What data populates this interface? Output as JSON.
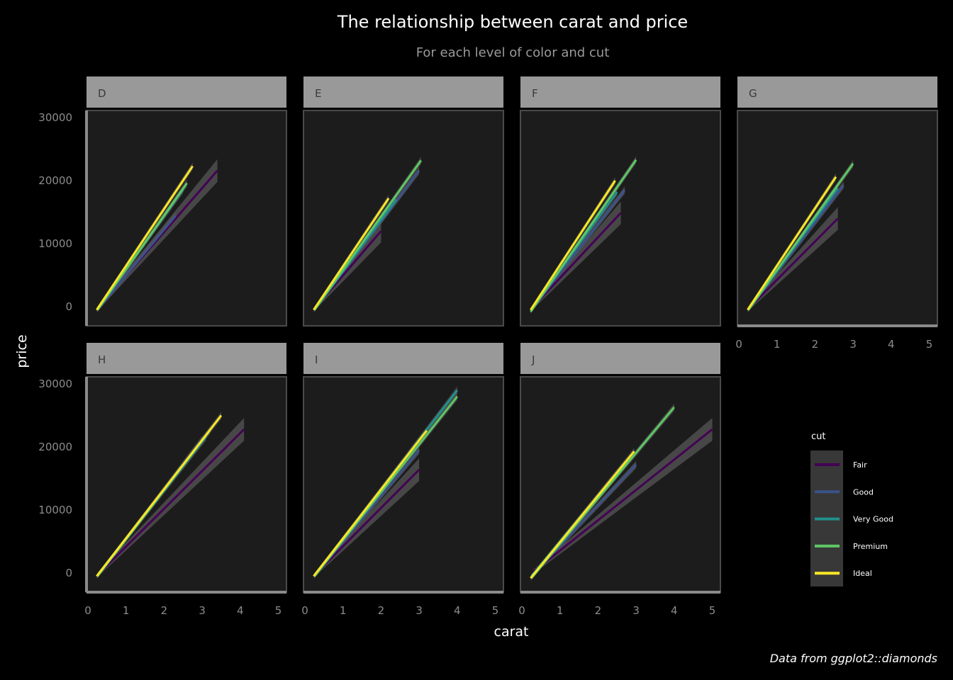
{
  "chart_data": {
    "type": "line",
    "title": "The relationship between carat and price",
    "subtitle": "For each level of color and cut",
    "xlabel": "carat",
    "ylabel": "price",
    "caption": "Data from ggplot2::diamonds",
    "xlim": [
      0,
      5
    ],
    "ylim": [
      -2500,
      33000
    ],
    "x_ticks": [
      "0",
      "1",
      "2",
      "3",
      "4",
      "5"
    ],
    "y_ticks": [
      "0",
      "10000",
      "20000",
      "30000"
    ],
    "legend": {
      "title": "cut",
      "position": "right",
      "entries": [
        "Fair",
        "Good",
        "Very Good",
        "Premium",
        "Ideal"
      ]
    },
    "colors": {
      "Fair": "#440154",
      "Good": "#3b528b",
      "Very Good": "#21908c",
      "Premium": "#5dc863",
      "Ideal": "#fde725",
      "background": "#000000",
      "panel": "#1c1c1c",
      "strip": "#999999",
      "ribbon": "#555555"
    },
    "facets": [
      {
        "label": "D",
        "series": [
          {
            "name": "Fair",
            "x": [
              0.25,
              3.4
            ],
            "y": [
              -300,
              21600
            ]
          },
          {
            "name": "Good",
            "x": [
              0.25,
              2.3
            ],
            "y": [
              -500,
              14400
            ]
          },
          {
            "name": "Very Good",
            "x": [
              0.25,
              2.5
            ],
            "y": [
              -500,
              18600
            ]
          },
          {
            "name": "Premium",
            "x": [
              0.25,
              2.6
            ],
            "y": [
              -500,
              19600
            ]
          },
          {
            "name": "Ideal",
            "x": [
              0.23,
              2.75
            ],
            "y": [
              -500,
              22300
            ]
          }
        ]
      },
      {
        "label": "E",
        "series": [
          {
            "name": "Fair",
            "x": [
              0.25,
              2.0
            ],
            "y": [
              -300,
              12000
            ]
          },
          {
            "name": "Good",
            "x": [
              0.25,
              3.0
            ],
            "y": [
              -500,
              21600
            ]
          },
          {
            "name": "Very Good",
            "x": [
              0.25,
              2.4
            ],
            "y": [
              -500,
              17000
            ]
          },
          {
            "name": "Premium",
            "x": [
              0.25,
              3.05
            ],
            "y": [
              -500,
              23200
            ]
          },
          {
            "name": "Ideal",
            "x": [
              0.23,
              2.2
            ],
            "y": [
              -500,
              17200
            ]
          }
        ]
      },
      {
        "label": "F",
        "series": [
          {
            "name": "Fair",
            "x": [
              0.25,
              2.6
            ],
            "y": [
              -300,
              14900
            ]
          },
          {
            "name": "Good",
            "x": [
              0.25,
              2.7
            ],
            "y": [
              -500,
              18500
            ]
          },
          {
            "name": "Very Good",
            "x": [
              0.25,
              2.5
            ],
            "y": [
              -500,
              18200
            ]
          },
          {
            "name": "Premium",
            "x": [
              0.23,
              3.0
            ],
            "y": [
              -800,
              23300
            ]
          },
          {
            "name": "Ideal",
            "x": [
              0.23,
              2.45
            ],
            "y": [
              -500,
              20000
            ]
          }
        ]
      },
      {
        "label": "G",
        "series": [
          {
            "name": "Fair",
            "x": [
              0.25,
              2.6
            ],
            "y": [
              -300,
              14000
            ]
          },
          {
            "name": "Good",
            "x": [
              0.25,
              2.75
            ],
            "y": [
              -500,
              19300
            ]
          },
          {
            "name": "Very Good",
            "x": [
              0.25,
              2.6
            ],
            "y": [
              -500,
              18800
            ]
          },
          {
            "name": "Premium",
            "x": [
              0.25,
              3.0
            ],
            "y": [
              -500,
              22700
            ]
          },
          {
            "name": "Ideal",
            "x": [
              0.23,
              2.55
            ],
            "y": [
              -500,
              20600
            ]
          }
        ]
      },
      {
        "label": "H",
        "series": [
          {
            "name": "Fair",
            "x": [
              0.25,
              4.1
            ],
            "y": [
              -300,
              22800
            ]
          },
          {
            "name": "Good",
            "x": [
              0.25,
              3.0
            ],
            "y": [
              -500,
              21200
            ]
          },
          {
            "name": "Very Good",
            "x": [
              0.25,
              3.1
            ],
            "y": [
              -500,
              21600
            ]
          },
          {
            "name": "Premium",
            "x": [
              0.25,
              3.2
            ],
            "y": [
              -500,
              22600
            ]
          },
          {
            "name": "Ideal",
            "x": [
              0.23,
              3.5
            ],
            "y": [
              -500,
              25000
            ]
          }
        ]
      },
      {
        "label": "I",
        "series": [
          {
            "name": "Fair",
            "x": [
              0.25,
              3.0
            ],
            "y": [
              -300,
              16400
            ]
          },
          {
            "name": "Good",
            "x": [
              0.25,
              3.0
            ],
            "y": [
              -500,
              19500
            ]
          },
          {
            "name": "Very Good",
            "x": [
              0.25,
              4.0
            ],
            "y": [
              -500,
              29000
            ]
          },
          {
            "name": "Premium",
            "x": [
              0.25,
              4.0
            ],
            "y": [
              -500,
              28000
            ]
          },
          {
            "name": "Ideal",
            "x": [
              0.23,
              3.2
            ],
            "y": [
              -500,
              22600
            ]
          }
        ]
      },
      {
        "label": "J",
        "series": [
          {
            "name": "Fair",
            "x": [
              0.3,
              5.0
            ],
            "y": [
              200,
              22800
            ]
          },
          {
            "name": "Good",
            "x": [
              0.25,
              3.0
            ],
            "y": [
              -500,
              17200
            ]
          },
          {
            "name": "Very Good",
            "x": [
              0.25,
              2.7
            ],
            "y": [
              -500,
              17400
            ]
          },
          {
            "name": "Premium",
            "x": [
              0.25,
              4.0
            ],
            "y": [
              -800,
              26300
            ]
          },
          {
            "name": "Ideal",
            "x": [
              0.23,
              2.95
            ],
            "y": [
              -800,
              19300
            ]
          }
        ]
      }
    ]
  }
}
